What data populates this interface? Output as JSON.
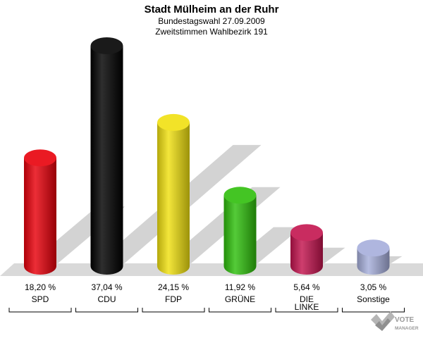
{
  "header": {
    "title": "Stadt Mülheim an der Ruhr",
    "subtitle": "Bundestagswahl 27.09.2009",
    "subtitle2": "Zweitstimmen Wahlbezirk 191"
  },
  "chart_data": {
    "type": "bar",
    "categories": [
      "SPD",
      "CDU",
      "FDP",
      "GRÜNE",
      "DIE LINKE",
      "Sonstige"
    ],
    "values": [
      18.2,
      37.04,
      24.15,
      11.92,
      5.64,
      3.05
    ],
    "value_labels": [
      "18,20 %",
      "37,04 %",
      "24,15 %",
      "11,92 %",
      "5,64 %",
      "3,05 %"
    ],
    "category_labels": [
      [
        "SPD"
      ],
      [
        "CDU"
      ],
      [
        "FDP"
      ],
      [
        "GRÜNE"
      ],
      [
        "DIE",
        "LINKE"
      ],
      [
        "Sonstige"
      ]
    ],
    "colors": [
      "#e8000b",
      "#000000",
      "#f0e010",
      "#2fbf0c",
      "#c3144e",
      "#a6aedb"
    ],
    "title": "Stadt Mülheim an der Ruhr",
    "xlabel": "",
    "ylabel": "",
    "ylim": [
      0,
      40
    ],
    "grid": false,
    "legend": "none"
  },
  "logo": {
    "text_top": "VOTE",
    "text_bottom": "MANAGER"
  }
}
